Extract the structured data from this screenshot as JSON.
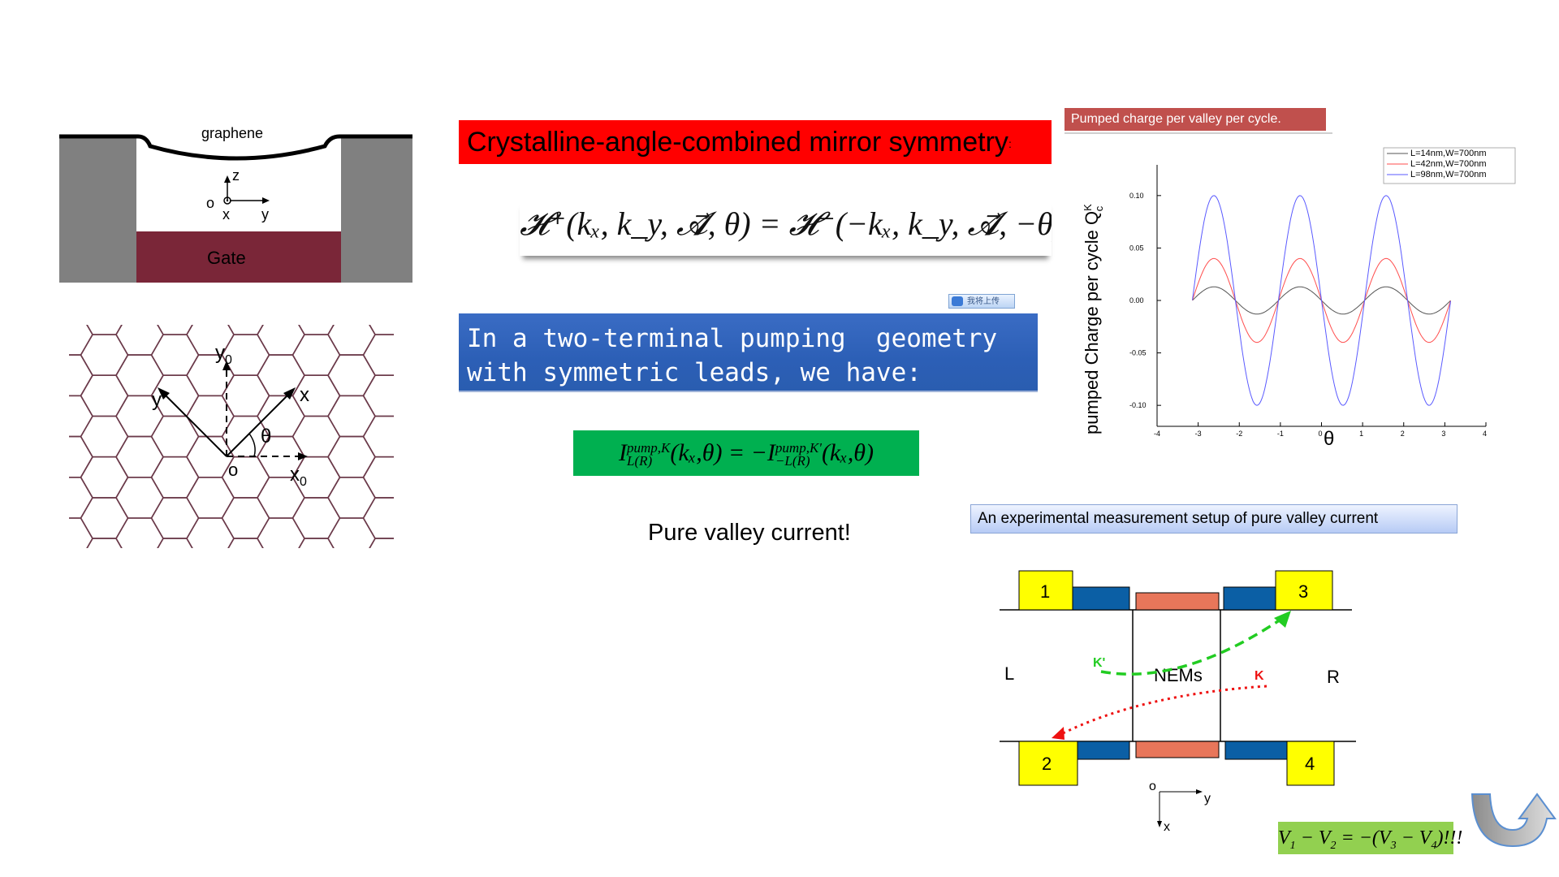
{
  "device": {
    "graphene_label": "graphene",
    "gate_label": "Gate",
    "axis_z": "z",
    "axis_x": "x",
    "axis_y": "y",
    "origin": "o"
  },
  "lattice": {
    "y0": "y",
    "y0_sub": "0",
    "x0": "x",
    "x0_sub": "0",
    "y": "y",
    "x": "x",
    "theta": "θ",
    "origin": "o"
  },
  "title": {
    "text": "Crystalline-angle-combined mirror symmetry",
    "trail": ":"
  },
  "hamiltonian": {
    "text": "𝓗⁺(kₓ, k_y, 𝓐⃗, θ) = 𝓗⁻(−kₓ, k_y, 𝓐⃗, −θ)"
  },
  "upload_badge": "我将上传",
  "blue_box": {
    "line1": "In a two-terminal pumping  geometry",
    "line2": "with symmetric leads, we have:"
  },
  "green_eq": {
    "lhs_base": "I",
    "lhs_sup": "pump,K",
    "lhs_sub": "L(R)",
    "lhs_args": "(kₓ,θ) = −",
    "rhs_base": "I",
    "rhs_sup": "pump,K'",
    "rhs_sub": "−L(R)",
    "rhs_args": "(kₓ,θ)"
  },
  "pure_valley": "Pure valley current!",
  "chart_caption": "Pumped charge per valley per cycle.",
  "chart_data": {
    "type": "line",
    "title": "",
    "xlabel": "θ",
    "ylabel": "pumped Charge per cycle Q",
    "ylabel_sup": "K",
    "ylabel_sub": "c",
    "xlim": [
      -4,
      4
    ],
    "ylim": [
      -0.12,
      0.12
    ],
    "x_ticks": [
      "-4",
      "-3",
      "-2",
      "-1",
      "0",
      "1",
      "2",
      "3",
      "4"
    ],
    "y_ticks": [
      "0.10",
      "0.05",
      "0.00",
      "-0.05",
      "-0.10"
    ],
    "x_range": [
      -3.14,
      3.14
    ],
    "series": [
      {
        "name": "L=14nm,W=700nm",
        "color": "#555555",
        "amplitude": 0.013,
        "frequency": 3,
        "phase": 3.14
      },
      {
        "name": "L=42nm,W=700nm",
        "color": "#ff4d4d",
        "amplitude": 0.04,
        "frequency": 3,
        "phase": 3.14
      },
      {
        "name": "L=98nm,W=700nm",
        "color": "#5a5aff",
        "amplitude": 0.1,
        "frequency": 3,
        "phase": 3.14
      }
    ],
    "legend": "top-right"
  },
  "exp_caption": "An experimental measurement setup of pure valley current",
  "setup": {
    "box1": "1",
    "box2": "2",
    "box3": "3",
    "box4": "4",
    "left": "L",
    "right": "R",
    "middle": "NEMs",
    "k_prime": "K'",
    "k": "K",
    "axis_o": "o",
    "axis_y": "y",
    "axis_x": "x",
    "colors": {
      "yellow": "#ffff00",
      "blue": "#0b5fa5",
      "salmon": "#e8765a",
      "green": "#22cc22",
      "red": "#ee1111"
    }
  },
  "voltage_eq": {
    "text": "V",
    "s1": "1",
    "mid": " − V",
    "s2": "2",
    "eq": " = −(V",
    "s3": "3",
    "mid2": " − V",
    "s4": "4",
    "end": ")!!!"
  },
  "return_arrow": "return-arrow-icon"
}
